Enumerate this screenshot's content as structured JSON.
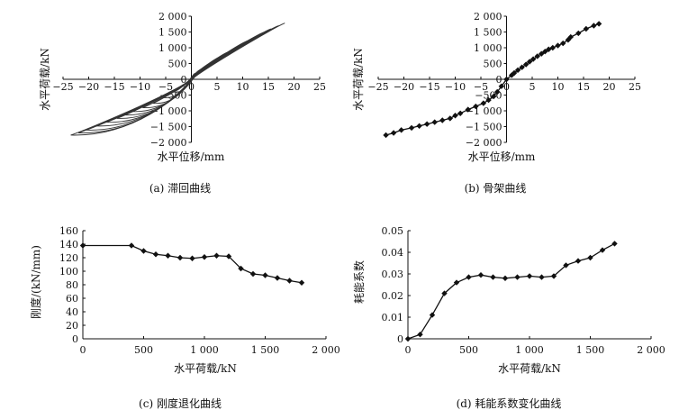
{
  "chart_data": [
    {
      "id": "hysteresis",
      "type": "line",
      "caption": "(a) 滞回曲线",
      "xlabel": "水平位移/mm",
      "ylabel": "水平荷载/kN",
      "xlim": [
        -25,
        25
      ],
      "ylim": [
        -2000,
        2000
      ],
      "xticks": [
        -25,
        -20,
        -15,
        -10,
        -5,
        0,
        5,
        10,
        15,
        20,
        25
      ],
      "xtick_labels": [
        "−25",
        "−20",
        "−15",
        "−10",
        "−5",
        "0",
        "5",
        "10",
        "15",
        "20",
        "25"
      ],
      "yticks": [
        2000,
        1500,
        1000,
        500,
        0,
        -500,
        -1000,
        -1500,
        -2000
      ],
      "ytick_labels": [
        "2 000",
        "1 500",
        "1 000",
        "500",
        "0",
        "−500",
        "−1 000",
        "−1 500",
        "−2 000"
      ],
      "axes_style": "through-origin",
      "grid": false,
      "series": [
        {
          "values_note": "",
          "loops": [
            {
              "xmax": 1.5,
              "ymax": 200,
              "xmin": -1.8,
              "ymin": -210
            },
            {
              "xmax": 3.0,
              "ymax": 380,
              "xmin": -3.5,
              "ymin": -400
            },
            {
              "xmax": 4.5,
              "ymax": 560,
              "xmin": -5.5,
              "ymin": -580
            },
            {
              "xmax": 6.0,
              "ymax": 730,
              "xmin": -7.5,
              "ymin": -760
            },
            {
              "xmax": 7.5,
              "ymax": 880,
              "xmin": -9.5,
              "ymin": -900
            },
            {
              "xmax": 9.0,
              "ymax": 1000,
              "xmin": -11.5,
              "ymin": -1020
            },
            {
              "xmax": 10.0,
              "ymax": 1120,
              "xmin": -13.0,
              "ymin": -1130
            },
            {
              "xmax": 11.0,
              "ymax": 1220,
              "xmin": -14.5,
              "ymin": -1240
            },
            {
              "xmax": 12.5,
              "ymax": 1340,
              "xmin": -16.5,
              "ymin": -1360
            },
            {
              "xmax": 14.0,
              "ymax": 1480,
              "xmin": -18.5,
              "ymin": -1480
            },
            {
              "xmax": 15.5,
              "ymax": 1600,
              "xmin": -20.5,
              "ymin": -1610
            },
            {
              "xmax": 17.0,
              "ymax": 1700,
              "xmin": -22.0,
              "ymin": -1700
            },
            {
              "xmax": 18.2,
              "ymax": 1780,
              "xmin": -23.5,
              "ymin": -1770
            }
          ]
        }
      ]
    },
    {
      "id": "skeleton",
      "type": "line",
      "caption": "(b) 骨架曲线",
      "xlabel": "水平位移/mm",
      "ylabel": "水平荷载/kN",
      "xlim": [
        -25,
        25
      ],
      "ylim": [
        -2000,
        2000
      ],
      "xticks": [
        -25,
        -20,
        -15,
        -10,
        -5,
        0,
        5,
        10,
        15,
        20,
        25
      ],
      "xtick_labels": [
        "−25",
        "−20",
        "−15",
        "−10",
        "−5",
        "0",
        "5",
        "10",
        "15",
        "20",
        "25"
      ],
      "yticks": [
        2000,
        1500,
        1000,
        500,
        0,
        -500,
        -1000,
        -1500,
        -2000
      ],
      "ytick_labels": [
        "2 000",
        "1 500",
        "1 000",
        "500",
        "0",
        "−500",
        "−1 000",
        "−1 500",
        "−2 000"
      ],
      "axes_style": "through-origin",
      "grid": false,
      "marker": "diamond",
      "series": [
        {
          "x": [
            -23.5,
            -22,
            -20.5,
            -18.5,
            -17,
            -15.5,
            -14,
            -12.5,
            -11,
            -10,
            -9,
            -7.5,
            -6,
            -4.5,
            -3.5,
            -2.5,
            -1.8,
            -1.0,
            0,
            1.0,
            1.5,
            2.2,
            3.0,
            3.8,
            4.5,
            5.2,
            6.0,
            6.8,
            7.5,
            8.2,
            9.0,
            10.0,
            11.0,
            12.0,
            12.5,
            14.0,
            15.5,
            17.0,
            18.0
          ],
          "y": [
            -1770,
            -1700,
            -1610,
            -1540,
            -1480,
            -1420,
            -1360,
            -1300,
            -1240,
            -1150,
            -1080,
            -960,
            -860,
            -760,
            -660,
            -540,
            -400,
            -220,
            0,
            130,
            200,
            290,
            380,
            470,
            560,
            640,
            730,
            810,
            880,
            950,
            1000,
            1070,
            1140,
            1250,
            1340,
            1460,
            1600,
            1700,
            1760
          ]
        }
      ]
    },
    {
      "id": "stiffness",
      "type": "line",
      "caption": "(c) 刚度退化曲线",
      "xlabel": "水平荷载/kN",
      "ylabel": "刚度/(kN/mm)",
      "xlim": [
        0,
        2000
      ],
      "ylim": [
        0,
        160
      ],
      "xticks": [
        0,
        500,
        1000,
        1500,
        2000
      ],
      "xtick_labels": [
        "0",
        "500",
        "1 000",
        "1 500",
        "2 000"
      ],
      "yticks": [
        0,
        20,
        40,
        60,
        80,
        100,
        120,
        140,
        160
      ],
      "ytick_labels": [
        "0",
        "20",
        "40",
        "60",
        "80",
        "100",
        "120",
        "140",
        "160"
      ],
      "axes_style": "box-left-bottom",
      "grid": false,
      "marker": "diamond",
      "series": [
        {
          "x": [
            0,
            400,
            500,
            600,
            700,
            800,
            900,
            1000,
            1100,
            1200,
            1300,
            1400,
            1500,
            1600,
            1700,
            1800
          ],
          "y": [
            138,
            138,
            130,
            125,
            123,
            120,
            119,
            121,
            123,
            122,
            104,
            96,
            94,
            90,
            86,
            83
          ]
        }
      ]
    },
    {
      "id": "damping",
      "type": "line",
      "caption": "(d) 耗能系数变化曲线",
      "xlabel": "水平荷载/kN",
      "ylabel": "耗能系数",
      "xlim": [
        0,
        2000
      ],
      "ylim": [
        0,
        0.05
      ],
      "xticks": [
        0,
        500,
        1000,
        1500,
        2000
      ],
      "xtick_labels": [
        "0",
        "500",
        "1 000",
        "1 500",
        "2 000"
      ],
      "yticks": [
        0,
        0.01,
        0.02,
        0.03,
        0.04,
        0.05
      ],
      "ytick_labels": [
        "0",
        "0.01",
        "0.02",
        "0.03",
        "0.04",
        "0.05"
      ],
      "axes_style": "box-left-bottom",
      "grid": false,
      "marker": "diamond",
      "series": [
        {
          "x": [
            0,
            100,
            200,
            300,
            400,
            500,
            600,
            700,
            800,
            900,
            1000,
            1100,
            1200,
            1300,
            1400,
            1500,
            1600,
            1700
          ],
          "y": [
            0.0,
            0.002,
            0.011,
            0.021,
            0.026,
            0.0285,
            0.0295,
            0.0285,
            0.028,
            0.0285,
            0.029,
            0.0285,
            0.029,
            0.034,
            0.036,
            0.0375,
            0.041,
            0.044
          ]
        }
      ]
    }
  ]
}
